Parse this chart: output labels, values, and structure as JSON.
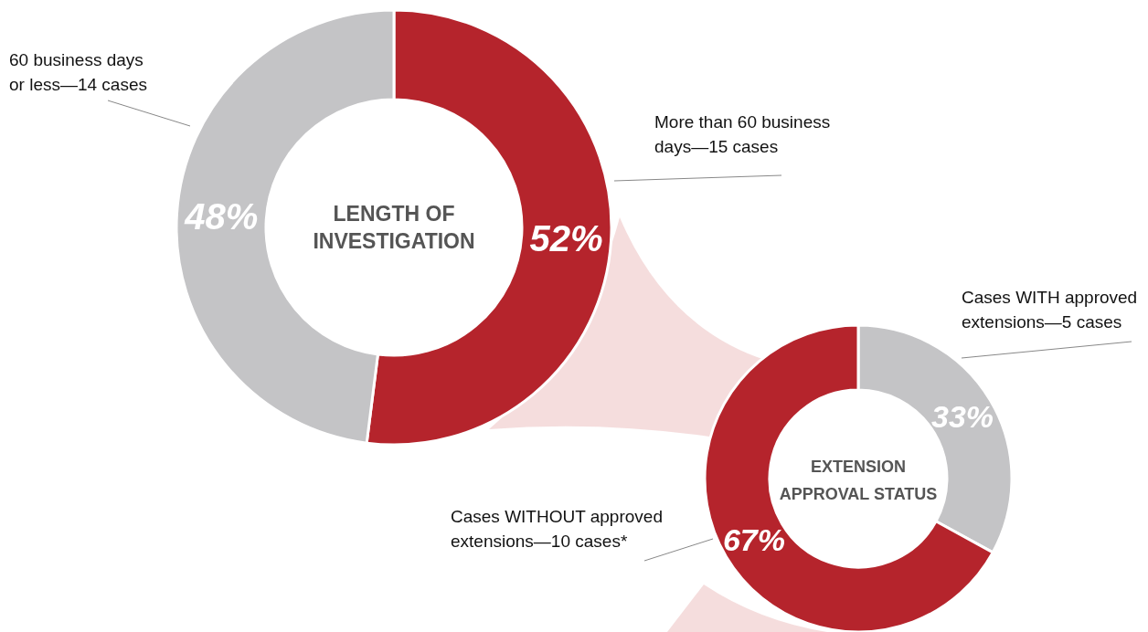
{
  "chart_data": [
    {
      "type": "donut",
      "title": "LENGTH OF INVESTIGATION",
      "categories": [
        "More than 60 business days—15 cases",
        "60 business days or less—14 cases"
      ],
      "values": [
        52,
        48
      ],
      "value_labels": [
        "52%",
        "48%"
      ],
      "colors": [
        "#b5242c",
        "#c4c4c6"
      ]
    },
    {
      "type": "donut",
      "title": "EXTENSION APPROVAL STATUS",
      "categories": [
        "Cases WITH approved extensions—5 cases",
        "Cases WITHOUT approved extensions—10 cases*"
      ],
      "values": [
        33,
        67
      ],
      "value_labels": [
        "33%",
        "67%"
      ],
      "colors": [
        "#c4c4c6",
        "#b5242c"
      ]
    }
  ]
}
